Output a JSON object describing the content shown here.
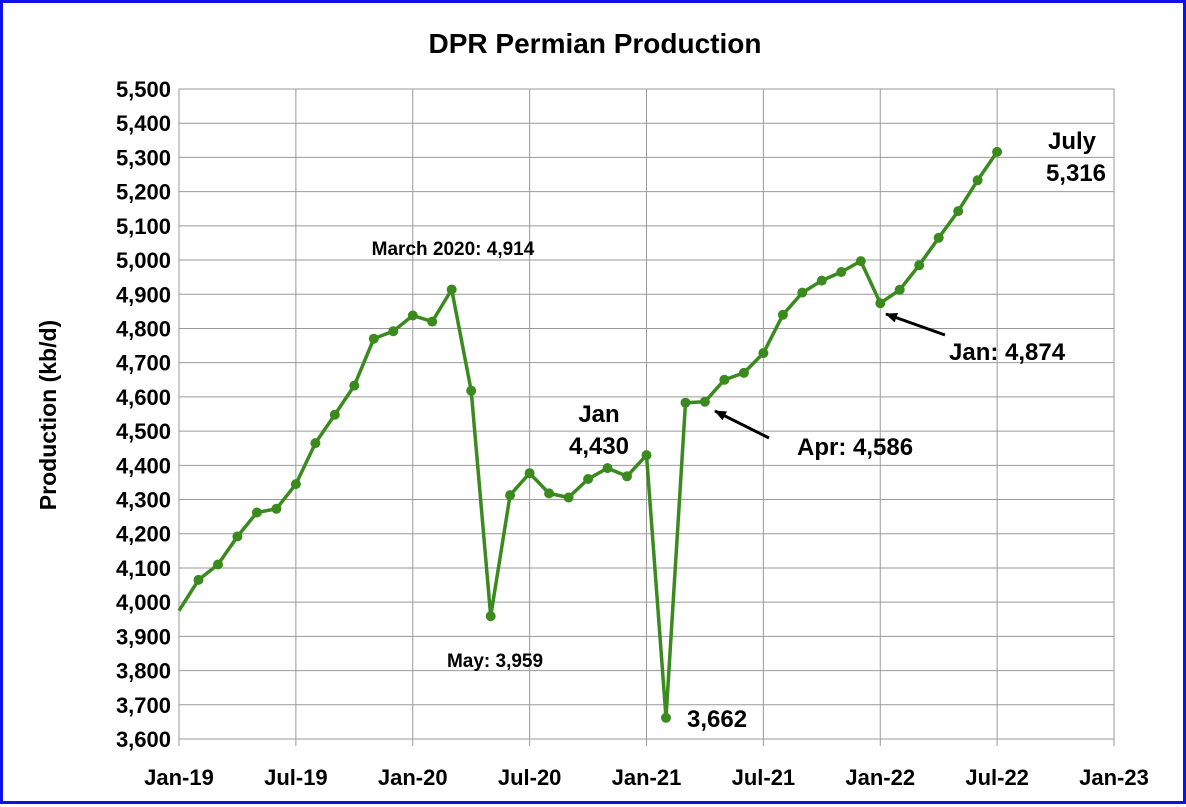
{
  "chart_data": {
    "type": "line",
    "title": "DPR Permian Production",
    "ylabel": "Production (kb/d)",
    "xlabel": "",
    "ylim": [
      3600,
      5500
    ],
    "y_ticks": [
      "3,600",
      "3,700",
      "3,800",
      "3,900",
      "4,000",
      "4,100",
      "4,200",
      "4,300",
      "4,400",
      "4,500",
      "4,600",
      "4,700",
      "4,800",
      "4,900",
      "5,000",
      "5,100",
      "5,200",
      "5,300",
      "5,400",
      "5,500"
    ],
    "x_ticks": [
      "Jan-19",
      "Jul-19",
      "Jan-20",
      "Jul-20",
      "Jan-21",
      "Jul-21",
      "Jan-22",
      "Jul-22",
      "Jan-23"
    ],
    "grid": true,
    "line_color": "#3a8a1e",
    "series": [
      {
        "x": [
          "Jan-19",
          "Feb-19",
          "Mar-19",
          "Apr-19",
          "May-19",
          "Jun-19",
          "Jul-19",
          "Aug-19",
          "Sep-19",
          "Oct-19",
          "Nov-19",
          "Dec-19",
          "Jan-20",
          "Feb-20",
          "Mar-20",
          "Apr-20",
          "May-20",
          "Jun-20",
          "Jul-20",
          "Aug-20",
          "Sep-20",
          "Oct-20",
          "Nov-20",
          "Dec-20",
          "Jan-21",
          "Feb-21",
          "Mar-21",
          "Apr-21",
          "May-21",
          "Jun-21",
          "Jul-21",
          "Aug-21",
          "Sep-21",
          "Oct-21",
          "Nov-21",
          "Dec-21",
          "Jan-22",
          "Feb-22",
          "Mar-22",
          "Apr-22",
          "May-22",
          "Jun-22",
          "Jul-22"
        ],
        "values": [
          3975,
          4065,
          4110,
          4192,
          4262,
          4273,
          4345,
          4465,
          4548,
          4633,
          4770,
          4792,
          4838,
          4820,
          4914,
          4618,
          3959,
          4313,
          4377,
          4318,
          4306,
          4360,
          4392,
          4368,
          4430,
          3662,
          4583,
          4586,
          4650,
          4670,
          4728,
          4840,
          4905,
          4940,
          4965,
          4997,
          4874,
          4913,
          4985,
          5065,
          5143,
          5233,
          5316
        ]
      }
    ],
    "annotations": [
      {
        "text": "March 2020: 4,914"
      },
      {
        "text": "May: 3,959"
      },
      {
        "text": "Jan"
      },
      {
        "text": "4,430"
      },
      {
        "text": "3,662"
      },
      {
        "text": "Apr: 4,586"
      },
      {
        "text": "Jan: 4,874"
      },
      {
        "text": "July"
      },
      {
        "text": "5,316"
      }
    ]
  }
}
